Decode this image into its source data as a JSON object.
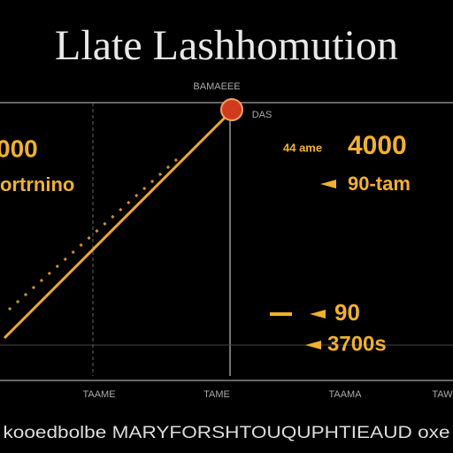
{
  "header": {
    "title": "Llate Lashhomution",
    "top_label": "BAMAEEE",
    "top_right_label": "DAS"
  },
  "left": {
    "value": "000",
    "label": "ortrnino"
  },
  "right": {
    "small_label": "44 ame",
    "value": "4000",
    "sub_label": "90-tam"
  },
  "lower": {
    "value": "90",
    "sub_value": "3700s"
  },
  "axis_labels": [
    "TAAME",
    "TAME",
    "TAAMA",
    "TAW"
  ],
  "footer": {
    "text": "kooedbolbe MARYFORSHTOUQUPHTIEAUD oxe"
  }
}
